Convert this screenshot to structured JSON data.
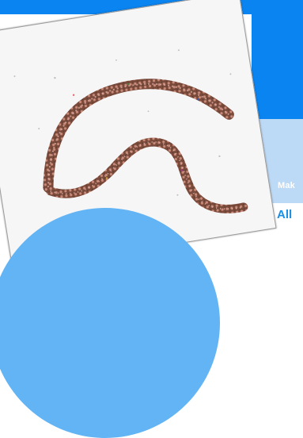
{
  "colors": {
    "primary_blue": "#0a84f0",
    "light_blue": "#bcd9f5",
    "circle_blue": "#62b4f4",
    "link_blue": "#1a8fe3",
    "photo_bg": "#f7f6f6"
  },
  "labels": {
    "make": "Mak",
    "all": "All"
  },
  "icons": {
    "photo": "scanned-necklace-photo"
  }
}
